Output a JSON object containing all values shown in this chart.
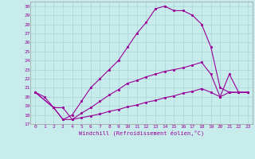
{
  "xlabel": "Windchill (Refroidissement éolien,°C)",
  "bg_color": "#c8ecec",
  "grid_color": "#aad4d4",
  "line_color": "#990099",
  "xlim": [
    -0.5,
    23.5
  ],
  "ylim": [
    17,
    30.5
  ],
  "xticks": [
    0,
    1,
    2,
    3,
    4,
    5,
    6,
    7,
    8,
    9,
    10,
    11,
    12,
    13,
    14,
    15,
    16,
    17,
    18,
    19,
    20,
    21,
    22,
    23
  ],
  "yticks": [
    17,
    18,
    19,
    20,
    21,
    22,
    23,
    24,
    25,
    26,
    27,
    28,
    29,
    30
  ],
  "series1_x": [
    0,
    1,
    2,
    3,
    4,
    5,
    6,
    7,
    8,
    9,
    10,
    11,
    12,
    13,
    14,
    15,
    16,
    17,
    18,
    19,
    20,
    21,
    22,
    23
  ],
  "series1_y": [
    20.5,
    20.0,
    18.8,
    17.5,
    18.0,
    19.5,
    21.0,
    22.0,
    23.0,
    24.0,
    25.5,
    27.0,
    28.2,
    29.7,
    30.0,
    29.5,
    29.5,
    29.0,
    28.0,
    25.5,
    21.0,
    20.5,
    20.5,
    20.5
  ],
  "series2_x": [
    0,
    2,
    3,
    4,
    5,
    6,
    7,
    8,
    9,
    10,
    11,
    12,
    13,
    14,
    15,
    16,
    17,
    18,
    19,
    20,
    21,
    22,
    23
  ],
  "series2_y": [
    20.5,
    18.8,
    18.8,
    17.5,
    18.2,
    18.8,
    19.5,
    20.2,
    20.8,
    21.5,
    21.8,
    22.2,
    22.5,
    22.8,
    23.0,
    23.2,
    23.5,
    23.8,
    22.5,
    20.0,
    22.5,
    20.5,
    20.5
  ],
  "series3_x": [
    0,
    2,
    3,
    4,
    5,
    6,
    7,
    8,
    9,
    10,
    11,
    12,
    13,
    14,
    15,
    16,
    17,
    18,
    19,
    20,
    21,
    22,
    23
  ],
  "series3_y": [
    20.5,
    18.8,
    17.5,
    17.5,
    17.7,
    17.9,
    18.1,
    18.4,
    18.6,
    18.9,
    19.1,
    19.4,
    19.6,
    19.9,
    20.1,
    20.4,
    20.6,
    20.9,
    20.5,
    20.0,
    20.5,
    20.5,
    20.5
  ]
}
